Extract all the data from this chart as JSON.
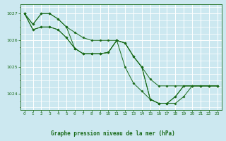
{
  "background_color": "#cce8f0",
  "grid_color": "#ffffff",
  "line_color": "#1a6b1a",
  "marker_color": "#1a6b1a",
  "title": "Graphe pression niveau de la mer (hPa)",
  "xlim": [
    -0.5,
    23.5
  ],
  "ylim": [
    1023.4,
    1027.35
  ],
  "yticks": [
    1024,
    1025,
    1026,
    1027
  ],
  "xticks": [
    0,
    1,
    2,
    3,
    4,
    5,
    6,
    7,
    8,
    9,
    10,
    11,
    12,
    13,
    14,
    15,
    16,
    17,
    18,
    19,
    20,
    21,
    22,
    23
  ],
  "series": [
    [
      1027.0,
      1026.6,
      1027.0,
      1027.0,
      1026.8,
      1026.5,
      1026.3,
      1026.1,
      1026.0,
      1026.0,
      1026.0,
      1026.0,
      1025.9,
      1025.4,
      1025.0,
      1024.55,
      1024.3,
      1024.3,
      1024.3,
      1024.3,
      1024.3,
      1024.3,
      1024.3,
      1024.3
    ],
    [
      1027.0,
      1026.6,
      1027.0,
      1027.0,
      1026.8,
      1026.5,
      1025.7,
      1025.5,
      1025.5,
      1025.5,
      1025.55,
      1026.0,
      1025.9,
      1025.4,
      1025.0,
      1023.8,
      1023.65,
      1023.65,
      1023.65,
      1023.9,
      1024.3,
      1024.3,
      1024.3,
      1024.3
    ],
    [
      1027.0,
      1026.4,
      1026.5,
      1026.5,
      1026.4,
      1026.1,
      1025.7,
      1025.5,
      1025.5,
      1025.5,
      1025.55,
      1026.0,
      1025.0,
      1024.4,
      1024.1,
      1023.8,
      1023.65,
      1023.65,
      1023.9,
      1024.3,
      1024.3,
      1024.3,
      1024.3,
      1024.3
    ],
    [
      1027.0,
      1026.4,
      1026.5,
      1026.5,
      1026.4,
      1026.1,
      1025.7,
      1025.5,
      1025.5,
      1025.5,
      1025.55,
      1026.0,
      1025.9,
      1025.4,
      1025.0,
      1023.8,
      1023.65,
      1023.65,
      1023.9,
      1024.3,
      1024.3,
      1024.3,
      1024.3,
      1024.3
    ]
  ]
}
